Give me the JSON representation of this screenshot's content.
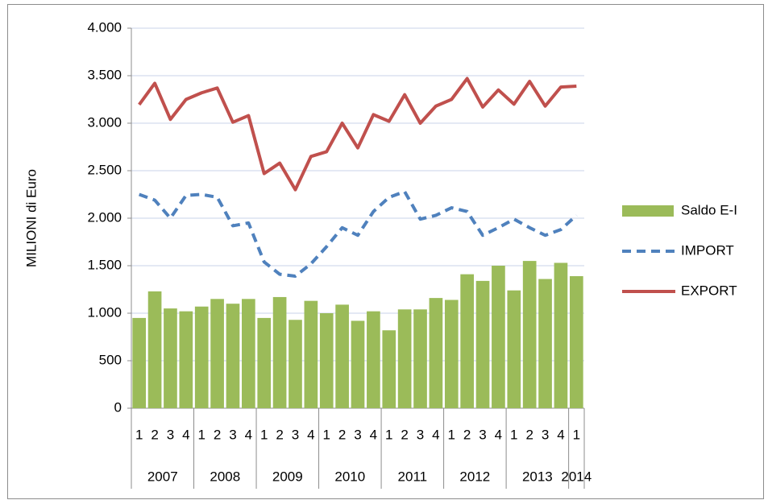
{
  "chart_data": {
    "type": "bar",
    "ylabel": "MILIONI di Euro",
    "categories": [
      "1",
      "2",
      "3",
      "4",
      "1",
      "2",
      "3",
      "4",
      "1",
      "2",
      "3",
      "4",
      "1",
      "2",
      "3",
      "4",
      "1",
      "2",
      "3",
      "4",
      "1",
      "2",
      "3",
      "4",
      "1",
      "2",
      "3",
      "4",
      "1"
    ],
    "groups": [
      {
        "label": "2007",
        "span": 4
      },
      {
        "label": "2008",
        "span": 4
      },
      {
        "label": "2009",
        "span": 4
      },
      {
        "label": "2010",
        "span": 4
      },
      {
        "label": "2011",
        "span": 4
      },
      {
        "label": "2012",
        "span": 4
      },
      {
        "label": "2013",
        "span": 4
      },
      {
        "label": "2014",
        "span": 1
      }
    ],
    "ylim": [
      0,
      4000
    ],
    "yticks": [
      0,
      500,
      {
        "value": 1000,
        "label": "1.000"
      },
      {
        "value": 1500,
        "label": "1.500"
      },
      {
        "value": 2000,
        "label": "2.000"
      },
      {
        "value": 2500,
        "label": "2.500"
      },
      {
        "value": 3000,
        "label": "3.000"
      },
      {
        "value": 3500,
        "label": "3.500"
      },
      {
        "value": 4000,
        "label": "4.000"
      }
    ],
    "grid": true,
    "legend": "right",
    "series": [
      {
        "name": "Saldo E-I",
        "type": "bar",
        "color": "#9bbb59",
        "values": [
          950,
          1230,
          1050,
          1020,
          1070,
          1150,
          1100,
          1150,
          950,
          1170,
          930,
          1130,
          1000,
          1090,
          920,
          1020,
          820,
          1040,
          1040,
          1160,
          1140,
          1410,
          1340,
          1500,
          1240,
          1550,
          1360,
          1530,
          1390
        ]
      },
      {
        "name": "IMPORT",
        "type": "line",
        "dashed": true,
        "color": "#4f81bd",
        "values": [
          2250,
          2190,
          2000,
          2240,
          2250,
          2220,
          1920,
          1950,
          1540,
          1410,
          1390,
          1520,
          1700,
          1900,
          1820,
          2070,
          2220,
          2280,
          1990,
          2030,
          2110,
          2070,
          1820,
          1900,
          1990,
          1900,
          1820,
          1880,
          2030
        ]
      },
      {
        "name": "EXPORT",
        "type": "line",
        "color": "#c0504d",
        "values": [
          3195,
          3420,
          3040,
          3250,
          3320,
          3370,
          3010,
          3080,
          2470,
          2580,
          2300,
          2650,
          2700,
          3000,
          2740,
          3090,
          3020,
          3300,
          3000,
          3180,
          3250,
          3470,
          3170,
          3350,
          3200,
          3440,
          3180,
          3380,
          3390
        ]
      }
    ]
  }
}
